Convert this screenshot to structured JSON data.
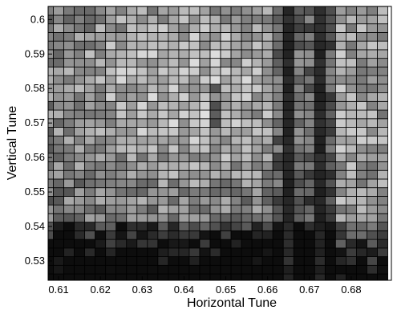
{
  "chart_data": {
    "type": "heatmap",
    "title": "",
    "xlabel": "Horizontal Tune",
    "ylabel": "Vertical Tune",
    "x_ticks": [
      "0.61",
      "0.62",
      "0.63",
      "0.64",
      "0.65",
      "0.66",
      "0.67",
      "0.68"
    ],
    "y_ticks": [
      "0.53",
      "0.54",
      "0.55",
      "0.56",
      "0.57",
      "0.58",
      "0.59",
      "0.6"
    ],
    "xlim": [
      0.6075,
      0.6896
    ],
    "ylim": [
      0.5244,
      0.6038
    ],
    "grid_step": 0.0025,
    "colormap": "gray",
    "value_range": [
      0,
      1
    ],
    "features": {
      "dark_vertical_resonances_x": [
        0.665,
        0.6725
      ],
      "dark_horizontal_resonance_y": [
        0.5325,
        0.5375
      ],
      "bright_region_center_x": 0.64,
      "bright_region_center_y": 0.58
    },
    "grid_line_color": "#000000"
  }
}
